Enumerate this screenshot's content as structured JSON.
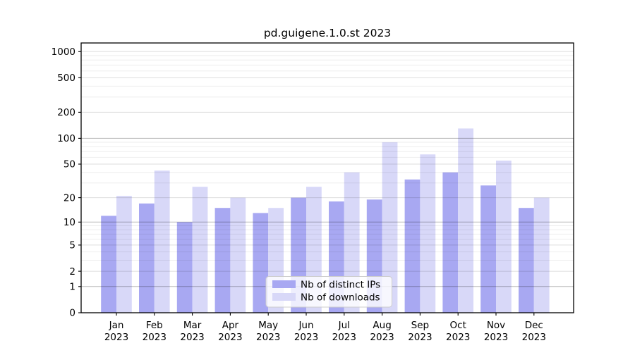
{
  "chart_data": {
    "type": "bar",
    "title": "pd.guigene.1.0.st 2023",
    "x": [
      "Jan",
      "Feb",
      "Mar",
      "Apr",
      "May",
      "Jun",
      "Jul",
      "Aug",
      "Sep",
      "Oct",
      "Nov",
      "Dec"
    ],
    "x_year": "2023",
    "series": [
      {
        "name": "Nb of distinct IPs",
        "color": "#a8a8f2",
        "values": [
          12,
          17,
          10,
          15,
          13,
          20,
          18,
          19,
          33,
          40,
          28,
          15
        ]
      },
      {
        "name": "Nb of downloads",
        "color": "#d8d8f8",
        "values": [
          21,
          42,
          27,
          20,
          15,
          27,
          40,
          90,
          65,
          130,
          55,
          20
        ]
      }
    ],
    "yscale": "log10(value+1)",
    "y_ticks": [
      0,
      1,
      2,
      5,
      10,
      20,
      50,
      100,
      200,
      500,
      1000
    ],
    "ylim": [
      0,
      1250
    ],
    "grid": true,
    "legend_position": "lower center",
    "colors": {
      "axis": "#000000",
      "grid_major": "#b8b8b8",
      "grid_labeled": "#dcdcdc",
      "grid_minor": "#ededed",
      "legend_border": "#cccccc"
    }
  }
}
